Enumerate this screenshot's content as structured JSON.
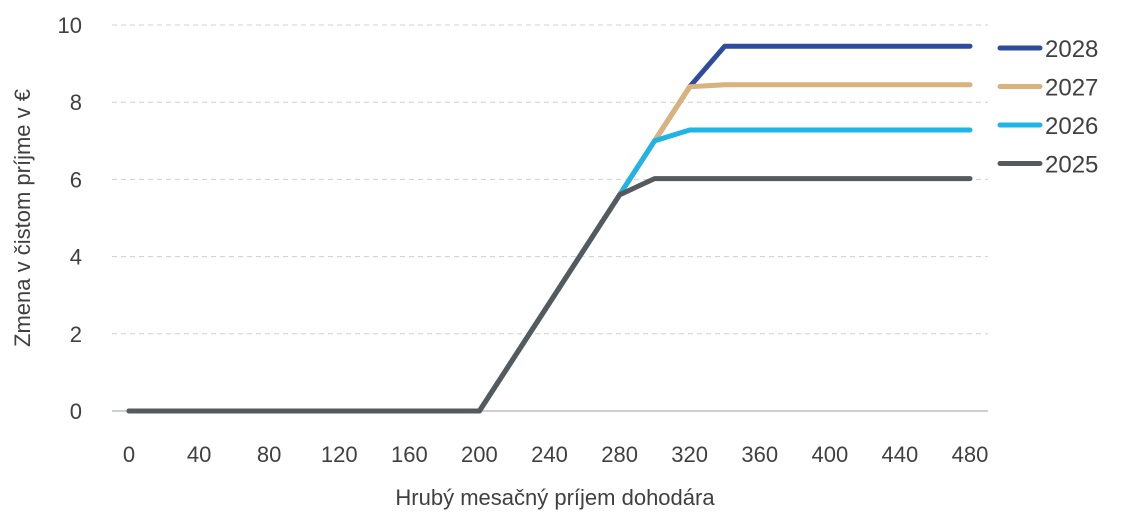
{
  "chart_data": {
    "type": "line",
    "title": "",
    "xlabel": "Hrubý mesačný príjem dohodára",
    "ylabel": "Zmena v čistom príjme v €",
    "xlim": [
      0,
      480
    ],
    "ylim": [
      0,
      10
    ],
    "x_ticks": [
      0,
      40,
      80,
      120,
      160,
      200,
      240,
      280,
      320,
      360,
      400,
      440,
      480
    ],
    "y_ticks": [
      0,
      2,
      4,
      6,
      8,
      10
    ],
    "grid": true,
    "legend_position": "right",
    "series": [
      {
        "name": "2028",
        "color": "#2F4B9B",
        "x": [
          0,
          200,
          280,
          320,
          340,
          480
        ],
        "y": [
          0,
          0,
          5.6,
          8.4,
          9.45,
          9.45
        ]
      },
      {
        "name": "2027",
        "color": "#D9B27C",
        "x": [
          0,
          200,
          280,
          320,
          340,
          480
        ],
        "y": [
          0,
          0,
          5.6,
          8.4,
          8.45,
          8.45
        ]
      },
      {
        "name": "2026",
        "color": "#1EB4E6",
        "x": [
          0,
          200,
          280,
          300,
          320,
          480
        ],
        "y": [
          0,
          0,
          5.6,
          7.0,
          7.28,
          7.28
        ]
      },
      {
        "name": "2025",
        "color": "#545A5E",
        "x": [
          0,
          200,
          280,
          300,
          480
        ],
        "y": [
          0,
          0,
          5.6,
          6.02,
          6.02
        ]
      }
    ]
  }
}
